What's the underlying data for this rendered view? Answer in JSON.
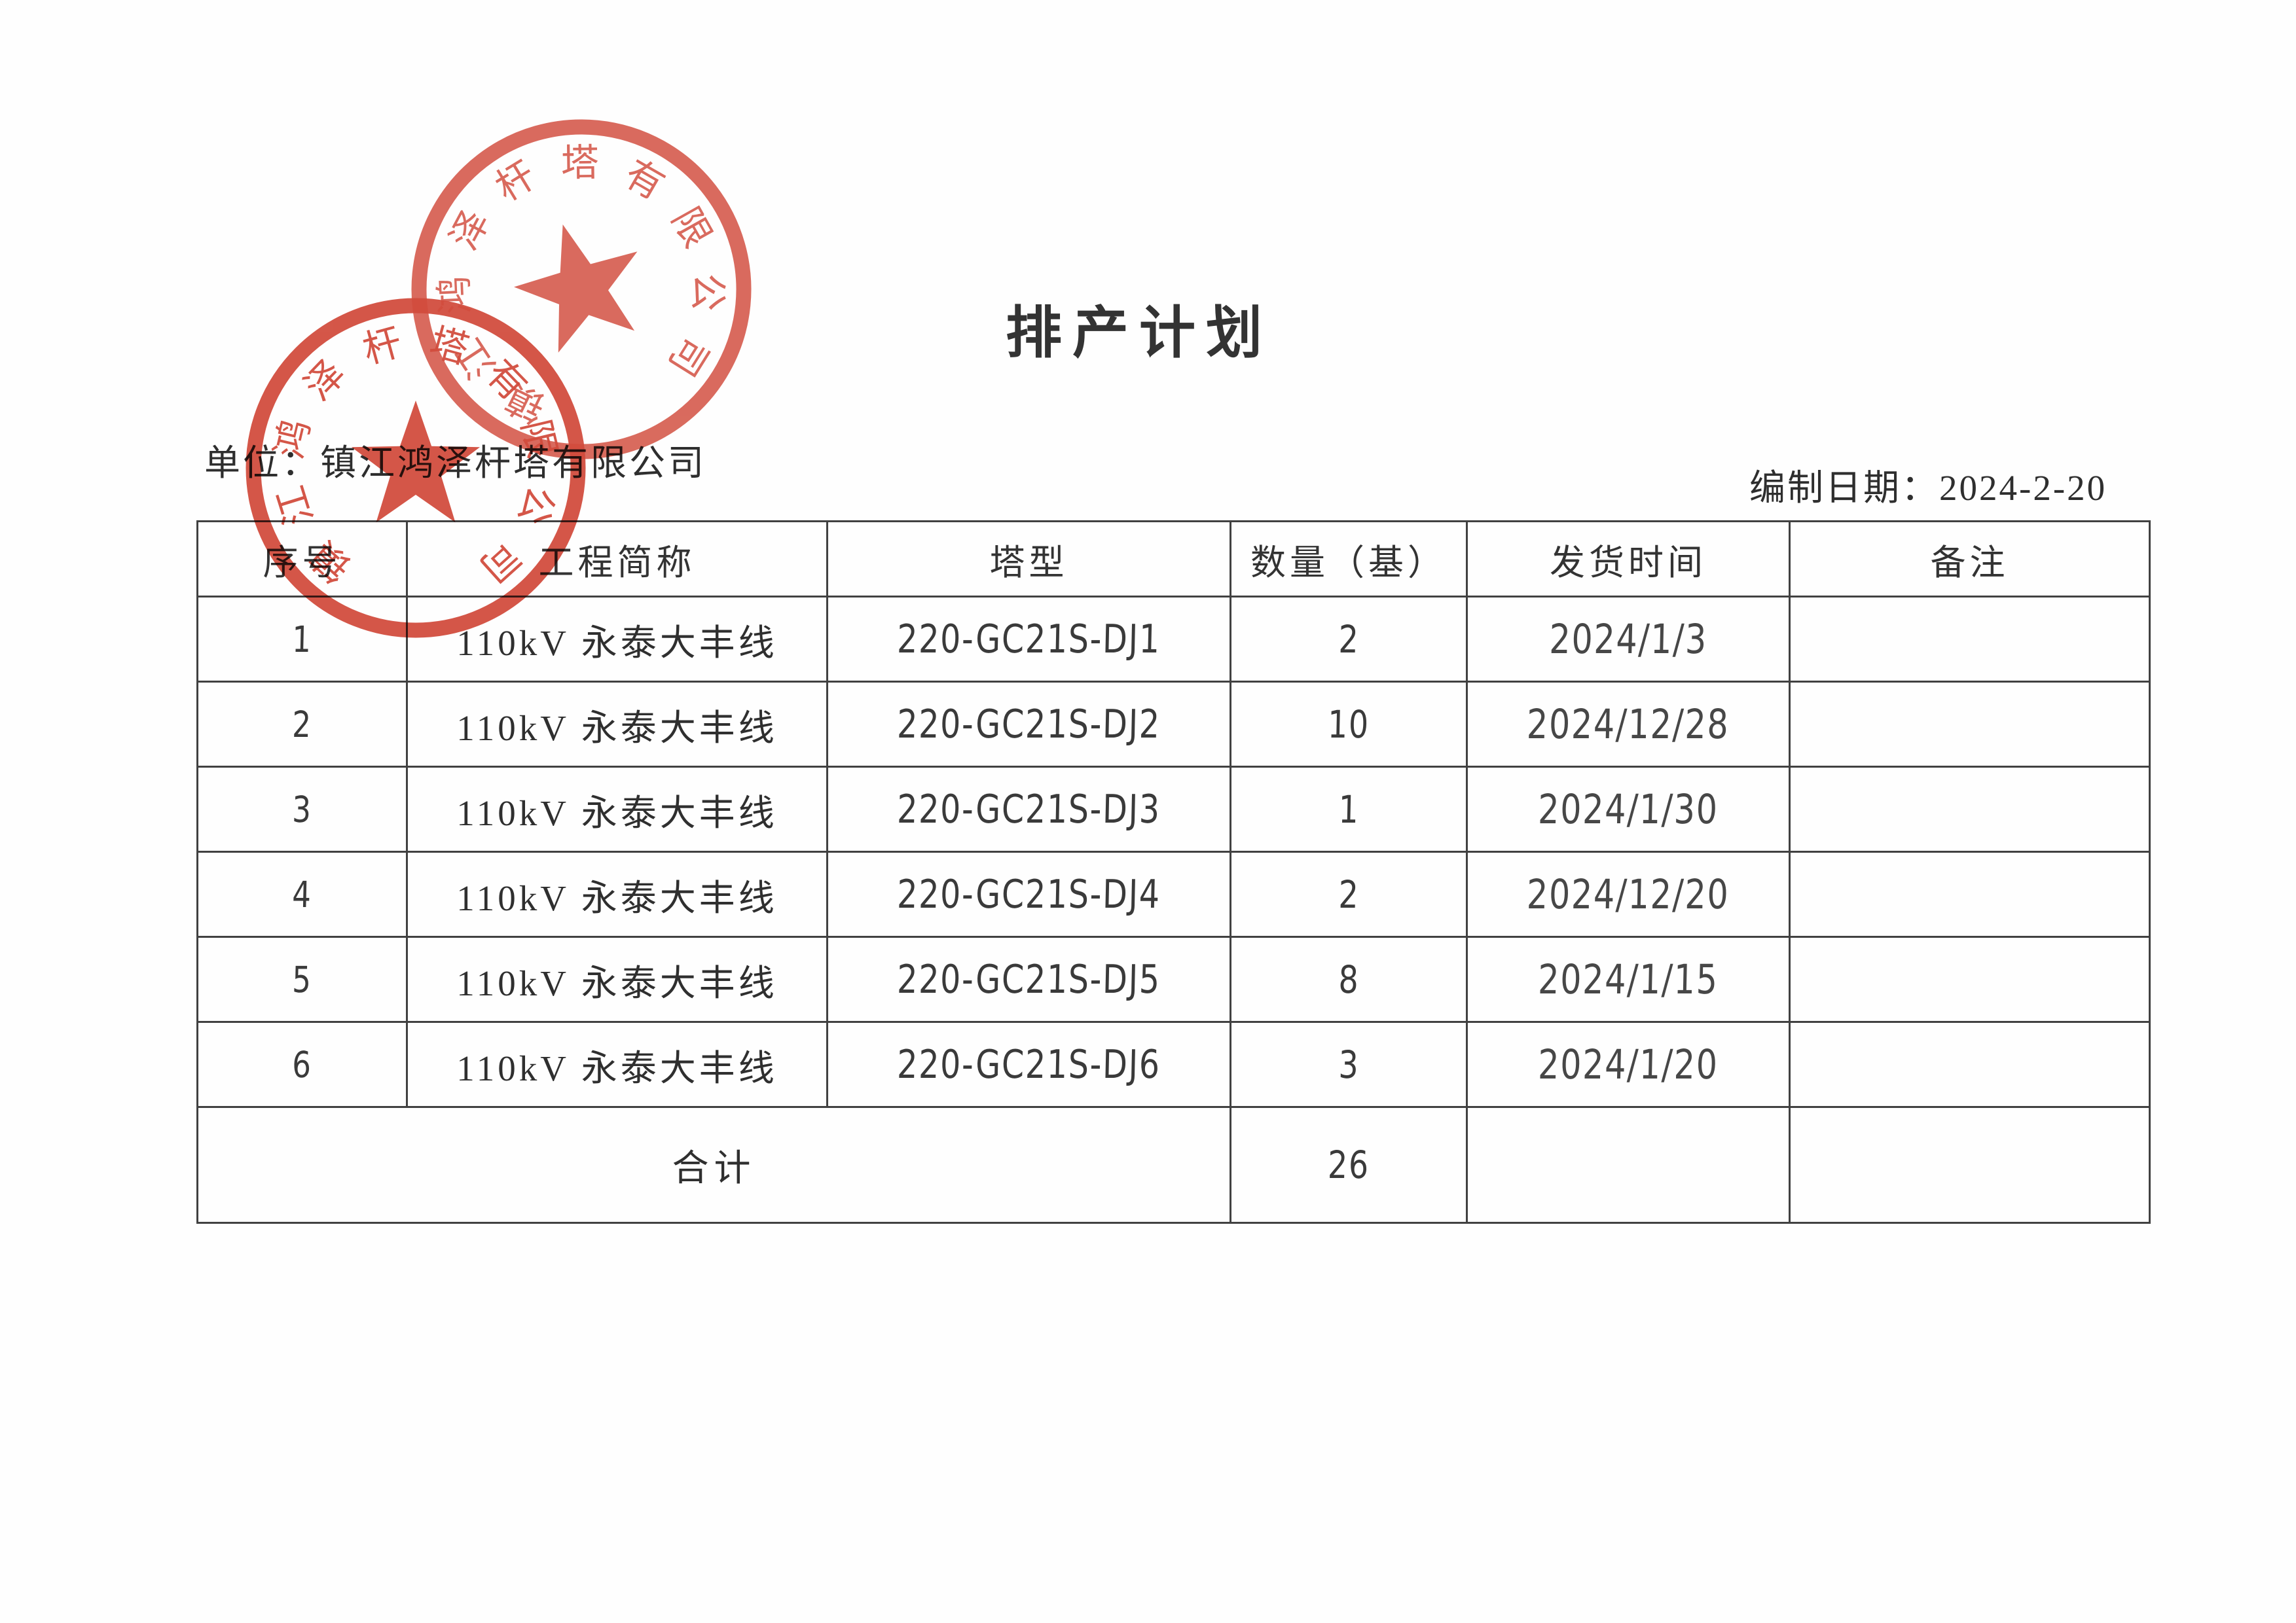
{
  "page": {
    "title": "排产计划",
    "unit_label": "单位：",
    "unit_value": "镇江鸿泽杆塔有限公司",
    "date_label": "编制日期：",
    "date_value": "2024-2-20"
  },
  "stamp": {
    "company": "镇江鸿泽杆塔有限公司",
    "color": "#d24a3b"
  },
  "table": {
    "headers": [
      "序号",
      "工程简称",
      "塔型",
      "数量（基）",
      "发货时间",
      "备注"
    ],
    "rows": [
      {
        "no": "1",
        "project": "110kV 永泰大丰线",
        "tower": "220-GC21S-DJ1",
        "qty": "2",
        "ship": "2024/1/3",
        "note": ""
      },
      {
        "no": "2",
        "project": "110kV 永泰大丰线",
        "tower": "220-GC21S-DJ2",
        "qty": "10",
        "ship": "2024/12/28",
        "note": ""
      },
      {
        "no": "3",
        "project": "110kV 永泰大丰线",
        "tower": "220-GC21S-DJ3",
        "qty": "1",
        "ship": "2024/1/30",
        "note": ""
      },
      {
        "no": "4",
        "project": "110kV 永泰大丰线",
        "tower": "220-GC21S-DJ4",
        "qty": "2",
        "ship": "2024/12/20",
        "note": ""
      },
      {
        "no": "5",
        "project": "110kV 永泰大丰线",
        "tower": "220-GC21S-DJ5",
        "qty": "8",
        "ship": "2024/1/15",
        "note": ""
      },
      {
        "no": "6",
        "project": "110kV 永泰大丰线",
        "tower": "220-GC21S-DJ6",
        "qty": "3",
        "ship": "2024/1/20",
        "note": ""
      }
    ],
    "total_label": "合计",
    "total_qty": "26",
    "total_ship": "",
    "total_note": ""
  }
}
